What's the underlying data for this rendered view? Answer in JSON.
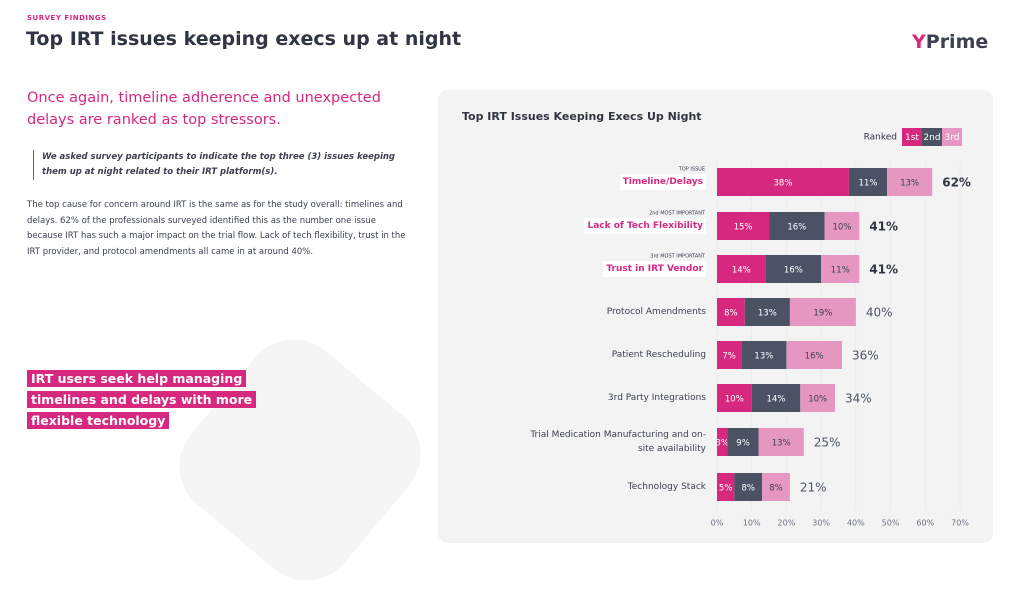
{
  "header": {
    "kicker": "SURVEY FINDINGS",
    "title": "Top IRT issues keeping execs up at night",
    "logo": "YPrime"
  },
  "left": {
    "subheading": "Once again, timeline adherence and unexpected delays are ranked as top stressors.",
    "quote": "We asked survey participants to indicate the top three (3) issues keeping them up at night related to their IRT platform(s).",
    "body": "The top cause for concern around IRT is the same as for the study overall: timelines and delays. 62% of the professionals surveyed identified this as the number one issue because IRT has such a major impact on the trial flow. Lack of tech flexibility, trust in the IRT provider, and protocol amendments all came in at around 40%.",
    "callout": [
      "IRT users seek help managing",
      "timelines and delays with more",
      "flexible technology"
    ]
  },
  "chart_data": {
    "type": "stacked-bar-horizontal",
    "title": "Top IRT Issues Keeping Execs Up Night",
    "legend_title": "Ranked",
    "categories": [
      "Timeline/Delays",
      "Lack of Tech Flexibility",
      "Trust in IRT Vendor",
      "Protocol Amendments",
      "Patient Rescheduling",
      "3rd Party Integrations",
      "Trial Medication Manufacturing and on-site availability",
      "Technology Stack"
    ],
    "rank_labels": [
      "TOP ISSUE",
      "2nd MOST IMPORTANT",
      "3rd MOST IMPORTANT",
      null,
      null,
      null,
      null,
      null
    ],
    "series": [
      {
        "name": "1st",
        "color": "#d6287f",
        "values": [
          38,
          15,
          14,
          8,
          7,
          10,
          3,
          5
        ],
        "value_labels": [
          "38%",
          "15%",
          "14%",
          "8%",
          "7%",
          "10%",
          "3%",
          "5%"
        ]
      },
      {
        "name": "2nd",
        "color": "#4a5263",
        "values": [
          11,
          16,
          16,
          13,
          13,
          14,
          9,
          8
        ],
        "value_labels": [
          "11%",
          "16%",
          "16%",
          "13%",
          "13%",
          "14%",
          "9%",
          "8%"
        ]
      },
      {
        "name": "3rd",
        "color": "#e597c1",
        "values": [
          13,
          10,
          11,
          19,
          16,
          10,
          13,
          8
        ],
        "value_labels": [
          "13%",
          "10%",
          "11%",
          "19%",
          "16%",
          "10%",
          "13%",
          "8%"
        ]
      }
    ],
    "totals": [
      62,
      41,
      41,
      40,
      36,
      34,
      25,
      21
    ],
    "total_labels": [
      "62%",
      "41%",
      "41%",
      "40%",
      "36%",
      "34%",
      "25%",
      "21%"
    ],
    "xlim": [
      0,
      70
    ],
    "xticks": [
      {
        "value": 0,
        "label": "0%"
      },
      {
        "value": 10,
        "label": "10%"
      },
      {
        "value": 20,
        "label": "20%"
      },
      {
        "value": 30,
        "label": "30%"
      },
      {
        "value": 40,
        "label": "40%"
      },
      {
        "value": 50,
        "label": "50%"
      },
      {
        "value": 60,
        "label": "60%"
      },
      {
        "value": 70,
        "label": "70%"
      }
    ]
  }
}
